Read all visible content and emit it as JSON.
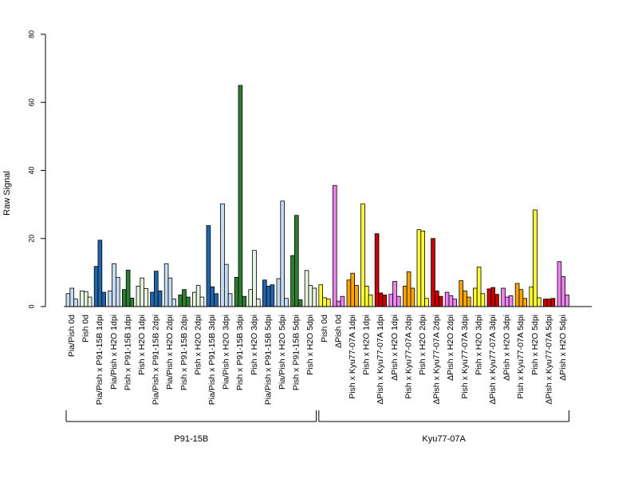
{
  "chart_data": {
    "type": "bar",
    "title": "",
    "xlabel": "",
    "ylabel": "Raw Signal",
    "ylim": [
      0,
      80
    ],
    "yticks": [
      0,
      20,
      40,
      60,
      80
    ],
    "grid": false,
    "legend": "none",
    "groups": [
      {
        "label": "P91-15B",
        "categories": [
          0,
          18
        ]
      },
      {
        "label": "Kyu77-07A",
        "categories": [
          18,
          36
        ]
      }
    ],
    "categories": [
      {
        "label": "Pia/Pish 0d",
        "color": "#c6dbef",
        "values": [
          3.8,
          5.4,
          2.2
        ]
      },
      {
        "label": "Pish 0d",
        "color": "#e5f5e0",
        "values": [
          4.6,
          4.4,
          2.8
        ]
      },
      {
        "label": "Pia/Pish x P91-15B 1dpi",
        "color": "#2166ac",
        "values": [
          11.8,
          19.5,
          4.2
        ]
      },
      {
        "label": "Pia/Pish x H2O 1dpi",
        "color": "#c6dbef",
        "values": [
          4.6,
          12.6,
          8.6
        ]
      },
      {
        "label": "Pish x P91-15B 1dpi",
        "color": "#2e7d32",
        "values": [
          5.0,
          10.7,
          2.5
        ]
      },
      {
        "label": "Pish x H2O 1dpi",
        "color": "#e5f5e0",
        "values": [
          6.0,
          8.4,
          5.3
        ]
      },
      {
        "label": "Pia/Pish x P91-15B 2dpi",
        "color": "#2166ac",
        "values": [
          4.2,
          10.4,
          4.6
        ]
      },
      {
        "label": "Pia/Pish x H2O 2dpi",
        "color": "#c6dbef",
        "values": [
          12.6,
          8.4,
          2.2
        ]
      },
      {
        "label": "Pish x P91-15B 2dpi",
        "color": "#2e7d32",
        "values": [
          3.4,
          5.0,
          2.8
        ]
      },
      {
        "label": "Pish x H2O 2dpi",
        "color": "#e5f5e0",
        "values": [
          4.2,
          6.2,
          2.8
        ]
      },
      {
        "label": "Pia/Pish x P91-15B 3dpi",
        "color": "#2166ac",
        "values": [
          23.8,
          5.8,
          3.8
        ]
      },
      {
        "label": "Pia/Pish x H2O 3dpi",
        "color": "#c6dbef",
        "values": [
          30.2,
          12.4,
          3.8
        ]
      },
      {
        "label": "Pish x P91-15B 3dpi",
        "color": "#2e7d32",
        "values": [
          8.6,
          65.0,
          3.0
        ]
      },
      {
        "label": "Pish x H2O 3dpi",
        "color": "#e5f5e0",
        "values": [
          5.0,
          16.5,
          2.2
        ]
      },
      {
        "label": "Pia/Pish x P91-15B 5dpi",
        "color": "#2166ac",
        "values": [
          7.8,
          6.0,
          6.4
        ]
      },
      {
        "label": "Pia/Pish x H2O 5dpi",
        "color": "#c6dbef",
        "values": [
          8.2,
          31.0,
          2.4
        ]
      },
      {
        "label": "Pish x P91-15B 5dpi",
        "color": "#2e7d32",
        "values": [
          15.0,
          26.8,
          2.0
        ]
      },
      {
        "label": "Pish x H2O 5dpi",
        "color": "#e5f5e0",
        "values": [
          10.6,
          6.2,
          5.4
        ]
      },
      {
        "label": "Pish 0d",
        "color": "#ffff33",
        "values": [
          6.4,
          2.6,
          2.2
        ]
      },
      {
        "label": "ΔPish 0d",
        "color": "#ee82ee",
        "values": [
          35.6,
          1.6,
          3.0
        ]
      },
      {
        "label": "Pish x Kyu77-07A 1dpi",
        "color": "#ffa500",
        "values": [
          7.8,
          9.8,
          6.2
        ]
      },
      {
        "label": "Pish x H2O 1dpi",
        "color": "#ffff33",
        "values": [
          30.2,
          6.0,
          3.4
        ]
      },
      {
        "label": "ΔPish x Kyu77-07A 1dpi",
        "color": "#cc0000",
        "values": [
          21.4,
          4.0,
          3.4
        ]
      },
      {
        "label": "ΔPish x H2O 1dpi",
        "color": "#ee82ee",
        "values": [
          3.6,
          7.4,
          3.0
        ]
      },
      {
        "label": "Pish x Kyu77-07A 2dpi",
        "color": "#ffa500",
        "values": [
          6.0,
          10.2,
          5.4
        ]
      },
      {
        "label": "Pish x H2O 2dpi",
        "color": "#ffff33",
        "values": [
          22.6,
          22.2,
          2.4
        ]
      },
      {
        "label": "ΔPish x Kyu77-07A 2dpi",
        "color": "#cc0000",
        "values": [
          20.0,
          4.6,
          3.0
        ]
      },
      {
        "label": "ΔPish x H2O 2dpi",
        "color": "#ee82ee",
        "values": [
          4.2,
          3.2,
          2.2
        ]
      },
      {
        "label": "Pish x Kyu77-07A 3dpi",
        "color": "#ffa500",
        "values": [
          7.6,
          4.6,
          2.8
        ]
      },
      {
        "label": "Pish x H2O 3dpi",
        "color": "#ffff33",
        "values": [
          5.4,
          11.6,
          3.8
        ]
      },
      {
        "label": "ΔPish x Kyu77-07A 3dpi",
        "color": "#cc0000",
        "values": [
          5.2,
          5.6,
          3.6
        ]
      },
      {
        "label": "ΔPish x H2O 3dpi",
        "color": "#ee82ee",
        "values": [
          5.4,
          2.8,
          3.2
        ]
      },
      {
        "label": "Pish x Kyu77-07A 5dpi",
        "color": "#ffa500",
        "values": [
          6.8,
          5.0,
          2.4
        ]
      },
      {
        "label": "Pish x H2O 5dpi",
        "color": "#ffff33",
        "values": [
          5.8,
          28.4,
          2.6
        ]
      },
      {
        "label": "ΔPish x Kyu77-07A 5dpi",
        "color": "#cc0000",
        "values": [
          2.2,
          2.2,
          2.4
        ]
      },
      {
        "label": "ΔPish x H2O 5dpi",
        "color": "#ee82ee",
        "values": [
          13.2,
          8.8,
          3.4
        ]
      }
    ]
  }
}
